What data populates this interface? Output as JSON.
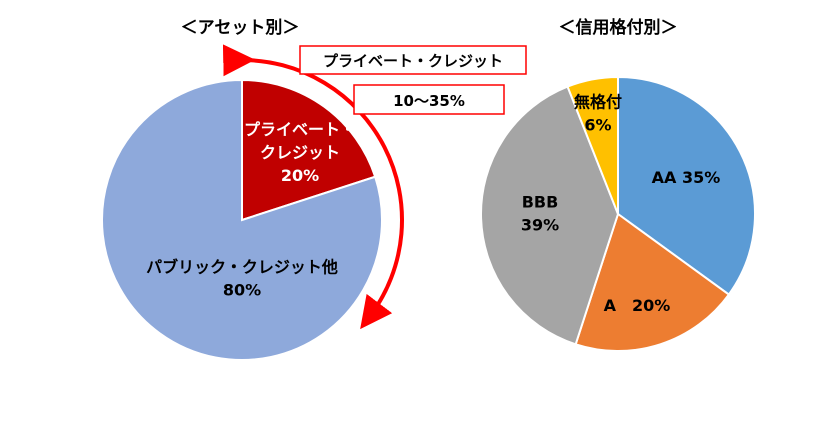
{
  "chart_data": [
    {
      "type": "pie",
      "title": "＜アセット別＞",
      "slices": [
        {
          "label_lines": [
            "プライベート・",
            "クレジット"
          ],
          "value_label": "20%",
          "value": 20,
          "color": "#C00000",
          "text_color": "#FFFFFF"
        },
        {
          "label_lines": [
            "パブリック・クレジット他"
          ],
          "value_label": "80%",
          "value": 80,
          "color": "#8EA9DB",
          "text_color": "#000000"
        }
      ],
      "annotation": {
        "label": "プライベート・クレジット",
        "range_label": "10～35%",
        "arrow_color": "#FF0000"
      }
    },
    {
      "type": "pie",
      "title": "＜信用格付別＞",
      "slices": [
        {
          "label_lines": [
            "AA 35%"
          ],
          "value_label": "",
          "value": 35,
          "color": "#5B9BD5",
          "text_color": "#000000"
        },
        {
          "label_lines": [
            "A　20%"
          ],
          "value_label": "",
          "value": 20,
          "color": "#ED7D31",
          "text_color": "#000000"
        },
        {
          "label_lines": [
            "BBB"
          ],
          "value_label": "39%",
          "value": 39,
          "color": "#A5A5A5",
          "text_color": "#000000"
        },
        {
          "label_lines": [
            "無格付"
          ],
          "value_label": "6%",
          "value": 6,
          "color": "#FFC000",
          "text_color": "#000000"
        }
      ]
    }
  ]
}
